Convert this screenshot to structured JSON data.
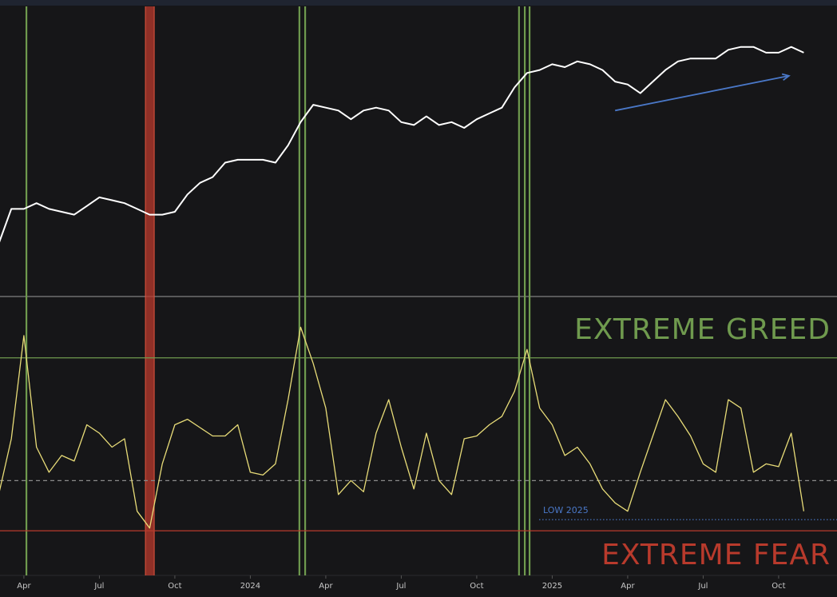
{
  "chart_data": [
    {
      "type": "line",
      "x": [
        2,
        2.5,
        3,
        3.5,
        4,
        4.5,
        5,
        5.5,
        6,
        6.5,
        7,
        7.5,
        8,
        8.5,
        9,
        9.5,
        10,
        10.5,
        11,
        11.5,
        12,
        12.5,
        13,
        13.5,
        14,
        14.5,
        15,
        15.5,
        16,
        16.5,
        17,
        17.5,
        18,
        18.5,
        19,
        19.5,
        20,
        20.5,
        21,
        21.5,
        22,
        22.5,
        23,
        23.5,
        24,
        24.5,
        25,
        25.5,
        26,
        26.5,
        27,
        27.5,
        28,
        28.5,
        29,
        29.5,
        30,
        30.5,
        31,
        31.5,
        32,
        32.5,
        33,
        33.5,
        34
      ],
      "series": [
        {
          "color": "#ffffff",
          "values": [
            18,
            30,
            30,
            32,
            30,
            29,
            28,
            31,
            34,
            33,
            32,
            30,
            28,
            28,
            29,
            35,
            39,
            41,
            46,
            47,
            47,
            47,
            46,
            52,
            60,
            66,
            65,
            64,
            61,
            64,
            65,
            64,
            60,
            59,
            62,
            59,
            60,
            58,
            61,
            63,
            65,
            72,
            77,
            78,
            80,
            79,
            81,
            80,
            78,
            74,
            73,
            70,
            74,
            78,
            81,
            82,
            82,
            82,
            85,
            86,
            86,
            84,
            84,
            86,
            84
          ]
        }
      ],
      "xlim": [
        2.05,
        35.32
      ],
      "ylim": [
        0,
        100
      ],
      "trend_arrow": {
        "color": "#4a78c8",
        "x": [
          26.5,
          33.41
        ],
        "y": [
          64,
          76
        ]
      },
      "vlines": [
        {
          "x": 3.1,
          "color": "#6f9a4e"
        },
        {
          "x": 13.95,
          "color": "#6f9a4e"
        },
        {
          "x": 14.18,
          "color": "#6f9a4e"
        },
        {
          "x": 22.68,
          "color": "#6f9a4e"
        },
        {
          "x": 22.91,
          "color": "#6f9a4e"
        },
        {
          "x": 23.1,
          "color": "#6f9a4e"
        }
      ],
      "bands": [
        {
          "x": [
            7.83,
            8.18
          ],
          "color": "#b83a2c"
        }
      ]
    },
    {
      "type": "line",
      "x": [
        2,
        2.5,
        3,
        3.5,
        4,
        4.5,
        5,
        5.5,
        6,
        6.5,
        7,
        7.5,
        8,
        8.5,
        9,
        9.5,
        10,
        10.5,
        11,
        11.5,
        12,
        12.5,
        13,
        13.5,
        14,
        14.5,
        15,
        15.5,
        16,
        16.5,
        17,
        17.5,
        18,
        18.5,
        19,
        19.5,
        20,
        20.5,
        21,
        21.5,
        22,
        22.5,
        23,
        23.5,
        24,
        24.5,
        25,
        25.5,
        26,
        26.5,
        27,
        27.5,
        28,
        28.5,
        29,
        29.5,
        30,
        30.5,
        31,
        31.5,
        32,
        32.5,
        33,
        33.5,
        34
      ],
      "series": [
        {
          "color": "#e8dc78",
          "values": [
            29,
            49,
            86,
            46,
            37,
            43,
            41,
            54,
            51,
            46,
            49,
            23,
            17,
            40,
            54,
            56,
            53,
            50,
            50,
            54,
            37,
            36,
            40,
            63,
            89,
            76,
            60,
            29,
            34,
            30,
            51,
            63,
            46,
            31,
            51,
            34,
            29,
            49,
            50,
            54,
            57,
            66,
            81,
            60,
            54,
            43,
            46,
            40,
            31,
            26,
            23,
            37,
            50,
            63,
            57,
            50,
            40,
            37,
            63,
            60,
            37,
            40,
            39,
            51,
            23
          ]
        }
      ],
      "xlim": [
        2.05,
        35.32
      ],
      "ylim": [
        0,
        100
      ],
      "xticks": [
        {
          "value": 3,
          "label": "Apr"
        },
        {
          "value": 6,
          "label": "Jul"
        },
        {
          "value": 9,
          "label": "Oct"
        },
        {
          "value": 12,
          "label": "2024"
        },
        {
          "value": 15,
          "label": "Apr"
        },
        {
          "value": 18,
          "label": "Jul"
        },
        {
          "value": 21,
          "label": "Oct"
        },
        {
          "value": 24,
          "label": "2025"
        },
        {
          "value": 27,
          "label": "Apr"
        },
        {
          "value": 30,
          "label": "Jul"
        },
        {
          "value": 33,
          "label": "Oct"
        }
      ],
      "ref_lines": [
        {
          "value": 78,
          "color": "#6f9a4e",
          "label": "EXTREME GREED",
          "style": "solid"
        },
        {
          "value": 34,
          "color": "#8a8a8a",
          "style": "dashed"
        },
        {
          "value": 20,
          "color": "#4a78c8",
          "label": "LOW 2025",
          "style": "dotted",
          "x_from": 23.48
        },
        {
          "value": 16,
          "color": "#b83a2c",
          "label": "EXTREME FEAR",
          "style": "solid"
        }
      ]
    }
  ]
}
